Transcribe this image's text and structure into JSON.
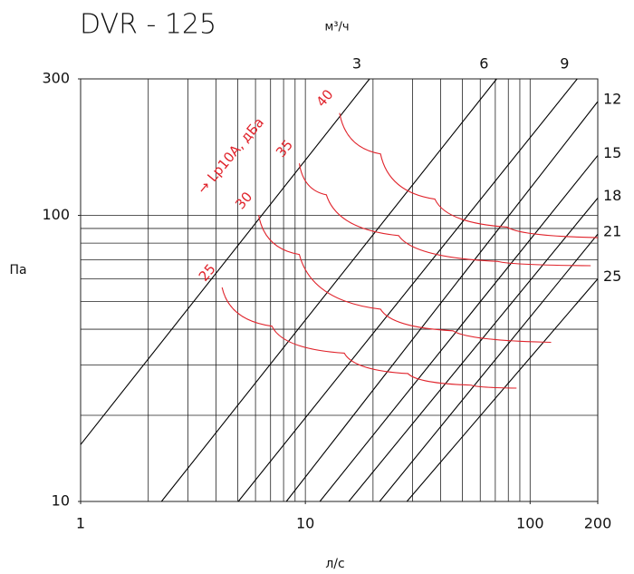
{
  "chart_data": {
    "type": "line",
    "title": "DVR - 125",
    "top_axis_label": "м³/ч",
    "xlabel": "л/с",
    "ylabel": "Па",
    "annotation": "→ Lp10A, дБа",
    "xscale": "log",
    "yscale": "log",
    "xlim": [
      1,
      200
    ],
    "ylim": [
      10,
      300
    ],
    "xticks": [
      1,
      10,
      100,
      200
    ],
    "yticks": [
      10,
      100,
      300
    ],
    "xgrid": [
      2,
      3,
      4,
      5,
      6,
      7,
      8,
      9,
      10,
      20,
      30,
      40,
      50,
      60,
      70,
      80,
      90,
      100
    ],
    "ygrid": [
      20,
      30,
      40,
      50,
      60,
      70,
      80,
      90,
      100
    ],
    "series": [
      {
        "name": "3",
        "color": "#000000",
        "x": [
          1,
          19.3
        ],
        "values": [
          15.8,
          300
        ]
      },
      {
        "name": "6",
        "color": "#000000",
        "x": [
          2.29,
          71
        ],
        "values": [
          10,
          300
        ]
      },
      {
        "name": "9",
        "color": "#000000",
        "x": [
          5.03,
          162
        ],
        "values": [
          10,
          300
        ]
      },
      {
        "name": "12",
        "color": "#000000",
        "x": [
          8.23,
          200
        ],
        "values": [
          10,
          250
        ]
      },
      {
        "name": "15",
        "color": "#000000",
        "x": [
          11.6,
          200
        ],
        "values": [
          10,
          162
        ]
      },
      {
        "name": "18",
        "color": "#000000",
        "x": [
          15.6,
          200
        ],
        "values": [
          10,
          115
        ]
      },
      {
        "name": "21",
        "color": "#000000",
        "x": [
          21.4,
          200
        ],
        "values": [
          10,
          86
        ]
      },
      {
        "name": "25",
        "color": "#000000",
        "x": [
          28.3,
          200
        ],
        "values": [
          10,
          60
        ]
      },
      {
        "name": "25",
        "color": "#e0232b",
        "x": [
          4.26,
          7.1,
          14.9,
          28.6,
          54.7,
          87
        ],
        "values": [
          56,
          41,
          33,
          28,
          25.5,
          24.9
        ]
      },
      {
        "name": "30",
        "color": "#e0232b",
        "x": [
          6.2,
          9.4,
          21.6,
          45.4,
          124
        ],
        "values": [
          100,
          73,
          47,
          39.5,
          36
        ]
      },
      {
        "name": "35",
        "color": "#e0232b",
        "x": [
          9.4,
          12.4,
          26,
          72,
          186
        ],
        "values": [
          152,
          118,
          85,
          69,
          66.7
        ]
      },
      {
        "name": "40",
        "color": "#e0232b",
        "x": [
          14.2,
          21.6,
          37.7,
          79,
          200
        ],
        "values": [
          228,
          164,
          114,
          91,
          83.6
        ]
      }
    ]
  }
}
